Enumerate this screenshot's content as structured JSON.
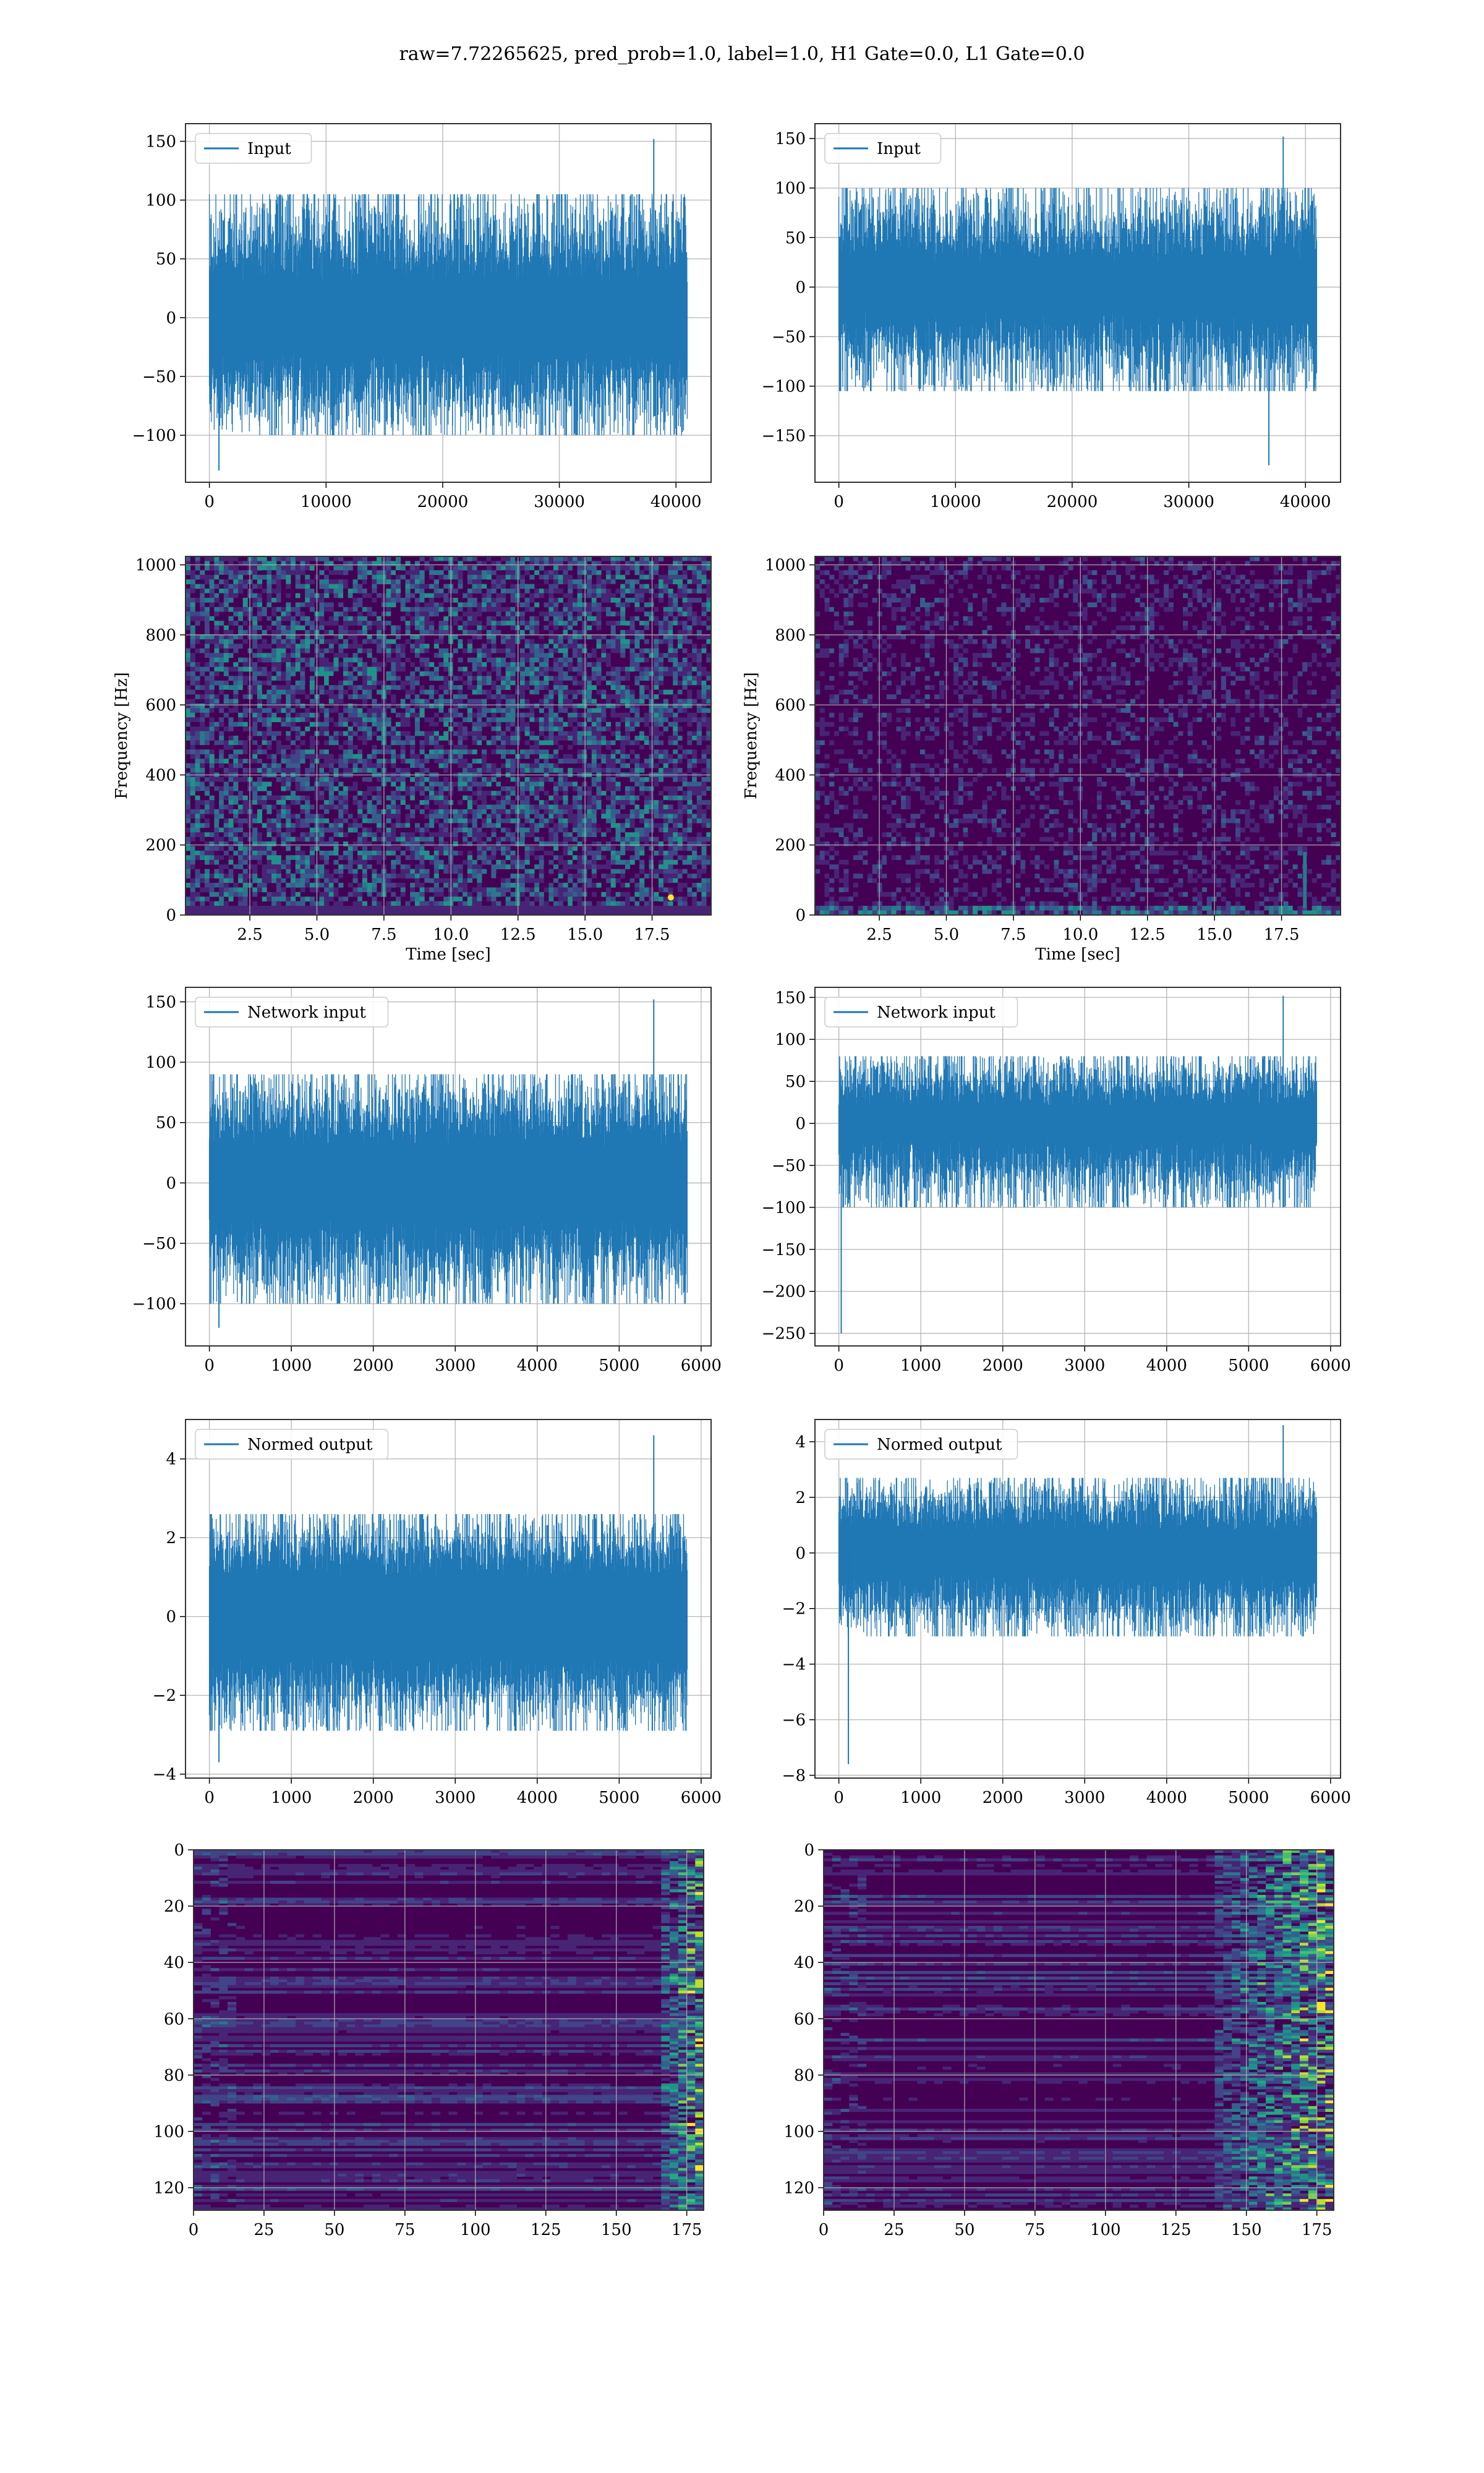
{
  "figure": {
    "title": "raw=7.72265625, pred_prob=1.0, label=1.0, H1 Gate=0.0, L1 Gate=0.0",
    "line_color": "#1f77b4",
    "grid_color": "#b0b0b0",
    "colormap": "viridis"
  },
  "chart_data": [
    {
      "id": "h1-input",
      "type": "line",
      "legend": "Input",
      "x": {
        "range": [
          0,
          40960
        ],
        "ticks": [
          0,
          10000,
          20000,
          30000,
          40000
        ]
      },
      "y": {
        "lim": [
          -140,
          165
        ],
        "ticks": [
          -100,
          -50,
          0,
          50,
          100,
          150
        ]
      },
      "envelope": {
        "core": 30,
        "typical_max": 105,
        "typical_min": -100,
        "max": 152,
        "min": -130
      }
    },
    {
      "id": "l1-input",
      "type": "line",
      "legend": "Input",
      "x": {
        "range": [
          0,
          40960
        ],
        "ticks": [
          0,
          10000,
          20000,
          30000,
          40000
        ]
      },
      "y": {
        "lim": [
          -197,
          165
        ],
        "ticks": [
          -150,
          -100,
          -50,
          0,
          50,
          100,
          150
        ]
      },
      "envelope": {
        "core": 25,
        "typical_max": 100,
        "typical_min": -105,
        "max": 152,
        "min": -180
      }
    },
    {
      "id": "h1-spectrogram",
      "type": "heatmap",
      "xlabel": "Time [sec]",
      "ylabel": "Frequency [Hz]",
      "x": {
        "lim": [
          0.1,
          19.7
        ],
        "ticks": [
          2.5,
          5.0,
          7.5,
          10.0,
          12.5,
          15.0,
          17.5
        ],
        "tick_labels": [
          "2.5",
          "5.0",
          "7.5",
          "10.0",
          "12.5",
          "15.0",
          "17.5"
        ]
      },
      "y": {
        "lim": [
          0,
          1024
        ],
        "ticks": [
          0,
          200,
          400,
          600,
          800,
          1000
        ]
      },
      "intensity": "high"
    },
    {
      "id": "l1-spectrogram",
      "type": "heatmap",
      "xlabel": "Time [sec]",
      "ylabel": "Frequency [Hz]",
      "x": {
        "lim": [
          0.1,
          19.7
        ],
        "ticks": [
          2.5,
          5.0,
          7.5,
          10.0,
          12.5,
          15.0,
          17.5
        ],
        "tick_labels": [
          "2.5",
          "5.0",
          "7.5",
          "10.0",
          "12.5",
          "15.0",
          "17.5"
        ]
      },
      "y": {
        "lim": [
          0,
          1024
        ],
        "ticks": [
          0,
          200,
          400,
          600,
          800,
          1000
        ]
      },
      "intensity": "low"
    },
    {
      "id": "h1-network-input",
      "type": "line",
      "legend": "Network input",
      "x": {
        "range": [
          0,
          5830
        ],
        "ticks": [
          0,
          1000,
          2000,
          3000,
          4000,
          5000,
          6000
        ]
      },
      "y": {
        "lim": [
          -135,
          162
        ],
        "ticks": [
          -100,
          -50,
          0,
          50,
          100,
          150
        ]
      },
      "envelope": {
        "core": 30,
        "typical_max": 90,
        "typical_min": -100,
        "max": 152,
        "min": -120
      }
    },
    {
      "id": "l1-network-input",
      "type": "line",
      "legend": "Network input",
      "x": {
        "range": [
          0,
          5830
        ],
        "ticks": [
          0,
          1000,
          2000,
          3000,
          4000,
          5000,
          6000
        ]
      },
      "y": {
        "lim": [
          -265,
          162
        ],
        "ticks": [
          -250,
          -200,
          -150,
          -100,
          -50,
          0,
          50,
          100,
          150
        ]
      },
      "envelope": {
        "core": 20,
        "typical_max": 80,
        "typical_min": -100,
        "max": 152,
        "min": -250
      }
    },
    {
      "id": "h1-normed-output",
      "type": "line",
      "legend": "Normed output",
      "x": {
        "range": [
          0,
          5830
        ],
        "ticks": [
          0,
          1000,
          2000,
          3000,
          4000,
          5000,
          6000
        ]
      },
      "y": {
        "lim": [
          -4.1,
          5.0
        ],
        "ticks": [
          -4,
          -2,
          0,
          2,
          4
        ]
      },
      "envelope": {
        "core": 1.0,
        "typical_max": 2.6,
        "typical_min": -2.9,
        "max": 4.6,
        "min": -3.7
      }
    },
    {
      "id": "l1-normed-output",
      "type": "line",
      "legend": "Normed output",
      "x": {
        "range": [
          0,
          5830
        ],
        "ticks": [
          0,
          1000,
          2000,
          3000,
          4000,
          5000,
          6000
        ]
      },
      "y": {
        "lim": [
          -8.1,
          4.8
        ],
        "ticks": [
          -8,
          -6,
          -4,
          -2,
          0,
          2,
          4
        ]
      },
      "envelope": {
        "core": 0.75,
        "typical_max": 2.7,
        "typical_min": -3.0,
        "max": 4.6,
        "min": -7.6
      }
    },
    {
      "id": "h1-feature-map",
      "type": "heatmap",
      "x": {
        "lim": [
          0,
          181
        ],
        "ticks": [
          0,
          25,
          50,
          75,
          100,
          125,
          150,
          175
        ]
      },
      "y": {
        "lim": [
          128,
          0
        ],
        "ticks": [
          0,
          20,
          40,
          60,
          80,
          100,
          120
        ],
        "inverted": true
      },
      "active_band": [
        165,
        181
      ]
    },
    {
      "id": "l1-feature-map",
      "type": "heatmap",
      "x": {
        "lim": [
          0,
          181
        ],
        "ticks": [
          0,
          25,
          50,
          75,
          100,
          125,
          150,
          175
        ]
      },
      "y": {
        "lim": [
          128,
          0
        ],
        "ticks": [
          0,
          20,
          40,
          60,
          80,
          100,
          120
        ],
        "inverted": true
      },
      "active_band": [
        140,
        181
      ]
    }
  ]
}
